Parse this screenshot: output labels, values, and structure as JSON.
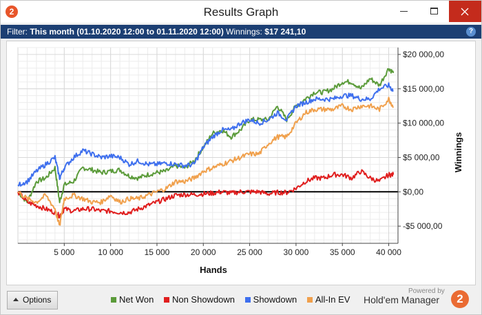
{
  "window": {
    "title": "Results Graph",
    "app_icon_glyph": "2",
    "controls": [
      "minimize-icon",
      "maximize-icon",
      "close-icon"
    ]
  },
  "filter": {
    "label": "Filter:",
    "value": "This month (01.10.2020 12:00 to 01.11.2020 12:00)",
    "winnings_label": "Winnings:",
    "winnings_value": "$17 241,10",
    "help_glyph": "?"
  },
  "chart_data": {
    "type": "line",
    "xlabel": "Hands",
    "ylabel": "Winnings",
    "xlim": [
      0,
      41000
    ],
    "ylim": [
      -7500,
      21000
    ],
    "xticks": [
      5000,
      10000,
      15000,
      20000,
      25000,
      30000,
      35000,
      40000
    ],
    "xtick_labels": [
      "5 000",
      "10 000",
      "15 000",
      "20 000",
      "25 000",
      "30 000",
      "35 000",
      "40 000"
    ],
    "yticks": [
      -5000,
      0,
      5000,
      10000,
      15000,
      20000
    ],
    "ytick_labels": [
      "-$5 000,00",
      "$0,00",
      "$5 000,00",
      "$10 000,00",
      "$15 000,00",
      "$20 000,00"
    ],
    "grid": true,
    "x": [
      0,
      1000,
      2000,
      3000,
      4000,
      4500,
      5000,
      6000,
      7000,
      8000,
      9000,
      10000,
      11000,
      12000,
      13000,
      14000,
      15000,
      16000,
      17000,
      18000,
      19000,
      20000,
      21000,
      22000,
      23000,
      24000,
      25000,
      26000,
      27000,
      28000,
      29000,
      30000,
      31000,
      32000,
      33000,
      34000,
      35000,
      36000,
      37000,
      38000,
      39000,
      40000,
      40500
    ],
    "series": [
      {
        "name": "Net Won",
        "color": "#5b9b3a",
        "values": [
          0,
          -1500,
          1500,
          2000,
          3500,
          -1500,
          1000,
          1500,
          3500,
          3200,
          2800,
          3000,
          3200,
          2300,
          2000,
          2500,
          2800,
          3000,
          3800,
          3500,
          4500,
          6500,
          8500,
          9000,
          8000,
          9000,
          10500,
          10500,
          10500,
          12500,
          10500,
          12500,
          13500,
          14500,
          14500,
          15000,
          16000,
          16000,
          15000,
          16500,
          15500,
          18000,
          17300
        ]
      },
      {
        "name": "Non Showdown",
        "color": "#e01e1e",
        "values": [
          0,
          -1500,
          -2000,
          -2500,
          -3000,
          -3500,
          -2500,
          -2800,
          -2500,
          -2500,
          -2800,
          -2800,
          -3000,
          -3000,
          -2500,
          -2000,
          -1500,
          -1000,
          -500,
          -400,
          -400,
          -300,
          -200,
          0,
          -200,
          0,
          0,
          0,
          -300,
          -100,
          -100,
          500,
          1500,
          2000,
          2000,
          2500,
          2500,
          2000,
          3000,
          2000,
          1500,
          2500,
          2500
        ]
      },
      {
        "name": "Showdown",
        "color": "#3e6fee",
        "values": [
          1000,
          1500,
          3000,
          4000,
          5000,
          2000,
          3500,
          5000,
          6000,
          5500,
          5000,
          5200,
          5000,
          4000,
          4500,
          4000,
          4000,
          4200,
          4000,
          3800,
          4000,
          6500,
          8000,
          9000,
          9000,
          10000,
          10500,
          10000,
          10500,
          11500,
          10500,
          12500,
          13000,
          13500,
          13500,
          13500,
          14000,
          14000,
          13500,
          13500,
          15000,
          15500,
          14700
        ]
      },
      {
        "name": "All-In EV",
        "color": "#f0a04c",
        "values": [
          0,
          -1000,
          -1500,
          -500,
          -2500,
          -5000,
          -1000,
          -500,
          -1000,
          -1500,
          -1500,
          -500,
          -1500,
          -1000,
          -1000,
          -500,
          0,
          500,
          1500,
          1500,
          2000,
          3000,
          3500,
          4000,
          4500,
          5000,
          5500,
          5500,
          7000,
          8000,
          8000,
          10000,
          11500,
          12000,
          12000,
          12000,
          12500,
          12000,
          12500,
          12500,
          12000,
          13500,
          12400
        ]
      }
    ]
  },
  "legend": {
    "items": [
      {
        "label": "Net Won",
        "color": "#5b9b3a"
      },
      {
        "label": "Non Showdown",
        "color": "#e01e1e"
      },
      {
        "label": "Showdown",
        "color": "#3e6fee"
      },
      {
        "label": "All-In EV",
        "color": "#f0a04c"
      }
    ]
  },
  "footer": {
    "options_label": "Options",
    "powered_by": "Powered by",
    "brand": "Hold'em Manager",
    "brand_glyph": "2"
  }
}
